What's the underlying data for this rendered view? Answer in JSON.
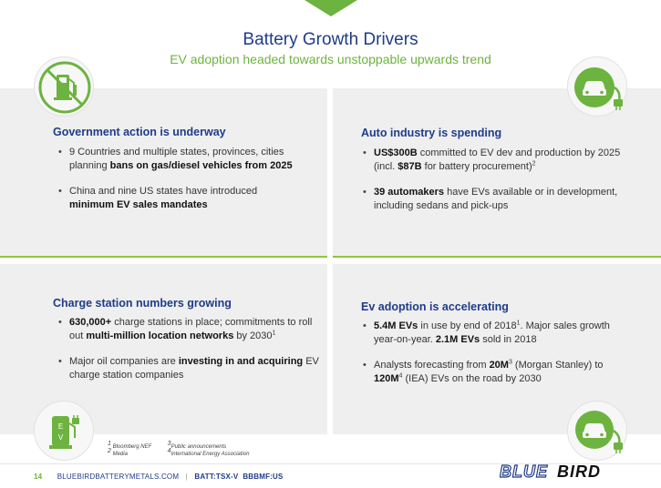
{
  "header": {
    "title": "Battery Growth Drivers",
    "subtitle": "EV adoption headed towards unstoppable upwards trend"
  },
  "panels": {
    "government": {
      "heading": "Government action is underway",
      "b1_pre": "9 Countries and multiple states, provinces, cities planning ",
      "b1_bold": "bans on gas/diesel vehicles from 2025",
      "b2_pre": "China and nine US states have introduced ",
      "b2_bold": "minimum EV sales mandates"
    },
    "auto": {
      "heading": "Auto industry is spending",
      "b1_bold1": "US$300B",
      "b1_mid": " committed to EV dev and production  by 2025 (incl. ",
      "b1_bold2": "$87B",
      "b1_end": " for battery procurement)",
      "b1_sup": "2",
      "b2_bold": "39 automakers",
      "b2_end": " have EVs available or in development, including sedans and pick-ups"
    },
    "charge": {
      "heading": "Charge station numbers growing",
      "b1_bold1": "630,000+",
      "b1_mid": " charge stations in place; commitments to roll out ",
      "b1_bold2": "multi-million location networks",
      "b1_end": " by 2030",
      "b1_sup": "1",
      "b2_pre": "Major oil companies are ",
      "b2_bold": "investing in and acquiring",
      "b2_end": " EV charge station companies"
    },
    "ev": {
      "heading": "Ev adoption is accelerating",
      "b1_bold1": "5.4M EVs",
      "b1_mid": " in use by end of 2018",
      "b1_sup": "1",
      "b1_mid2": ". Major sales growth year-on-year. ",
      "b1_bold2": "2.1M EVs",
      "b1_end": " sold in 2018",
      "b2_pre": "Analysts forecasting from ",
      "b2_bold1": "20M",
      "b2_sup1": "3",
      "b2_mid": " (Morgan Stanley) to ",
      "b2_bold2": "120M",
      "b2_sup2": "4",
      "b2_end": " (IEA) EVs on the road by 2030"
    }
  },
  "ev_station_label": "E\nV",
  "footnotes": {
    "n1": "Bloomberg NEF",
    "n2": "Media",
    "n3": "Public announcements",
    "n4": "International Energy Association",
    "s1": "1",
    "s2": "2",
    "s3": "3",
    "s4": "4"
  },
  "footer": {
    "page": "14",
    "site": "BLUEBIRDBATTERYMETALS.COM",
    "sep": "|",
    "ticker1": "BATT:TSX-V",
    "ticker2": "BBBMF:US"
  },
  "logo": {
    "part1": "BLUE",
    "part2": "BIRD"
  },
  "colors": {
    "navy": "#1f3c88",
    "green": "#6db33f",
    "panel": "#efefef"
  },
  "icons": [
    "no-gas-pump-icon",
    "electric-car-plug-icon",
    "ev-charging-station-icon",
    "electric-car-plug-icon"
  ]
}
